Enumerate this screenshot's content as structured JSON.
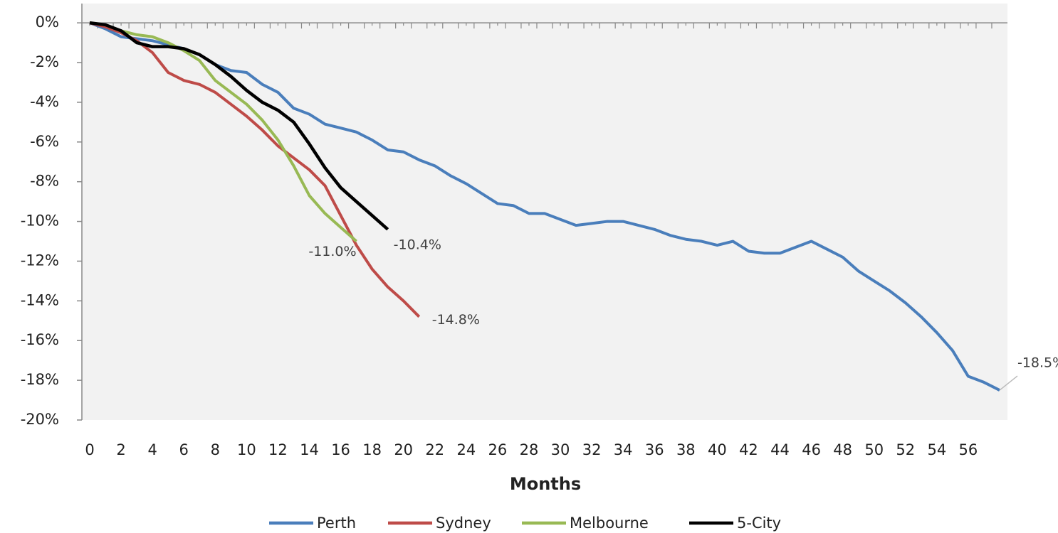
{
  "chart_data": {
    "type": "line",
    "x_label": "Months",
    "xlim": [
      -0.5,
      58.5
    ],
    "xticks": [
      0,
      2,
      4,
      6,
      8,
      10,
      12,
      14,
      16,
      18,
      20,
      22,
      24,
      26,
      28,
      30,
      32,
      34,
      36,
      38,
      40,
      42,
      44,
      46,
      48,
      50,
      52,
      54,
      56
    ],
    "ylim": [
      -20,
      0.9
    ],
    "yticks": [
      {
        "value": 0,
        "label": "0%"
      },
      {
        "value": -2,
        "label": "-2%"
      },
      {
        "value": -4,
        "label": "-4%"
      },
      {
        "value": -6,
        "label": "-6%"
      },
      {
        "value": -8,
        "label": "-8%"
      },
      {
        "value": -10,
        "label": "-10%"
      },
      {
        "value": -12,
        "label": "-12%"
      },
      {
        "value": -14,
        "label": "-14%"
      },
      {
        "value": -16,
        "label": "-16%"
      },
      {
        "value": -18,
        "label": "-18%"
      },
      {
        "value": -20,
        "label": "-20%"
      }
    ],
    "legend": "bottom",
    "series": [
      {
        "name": "Perth",
        "color": "#4a7ebb",
        "x": [
          0,
          1,
          2,
          3,
          4,
          5,
          6,
          7,
          8,
          9,
          10,
          11,
          12,
          13,
          14,
          15,
          16,
          17,
          18,
          19,
          20,
          21,
          22,
          23,
          24,
          25,
          26,
          27,
          28,
          29,
          30,
          31,
          32,
          33,
          34,
          35,
          36,
          37,
          38,
          39,
          40,
          41,
          42,
          43,
          44,
          45,
          46,
          47,
          48,
          49,
          50,
          51,
          52,
          53,
          54,
          55,
          56,
          57,
          58
        ],
        "values": [
          0,
          -0.3,
          -0.7,
          -0.8,
          -0.9,
          -1.1,
          -1.3,
          -1.6,
          -2.1,
          -2.4,
          -2.5,
          -3.1,
          -3.5,
          -4.3,
          -4.6,
          -5.1,
          -5.3,
          -5.5,
          -5.9,
          -6.4,
          -6.5,
          -6.9,
          -7.2,
          -7.7,
          -8.1,
          -8.6,
          -9.1,
          -9.2,
          -9.6,
          -9.6,
          -9.9,
          -10.2,
          -10.1,
          -10.0,
          -10.0,
          -10.2,
          -10.4,
          -10.7,
          -10.9,
          -11.0,
          -11.2,
          -11.0,
          -11.5,
          -11.6,
          -11.6,
          -11.3,
          -11.0,
          -11.4,
          -11.8,
          -12.5,
          -13.0,
          -13.5,
          -14.1,
          -14.8,
          -15.6,
          -16.5,
          -17.8,
          -18.1,
          -18.5
        ],
        "value_labels": [
          null,
          null,
          null,
          null,
          null,
          null,
          null,
          null,
          null,
          null,
          null,
          null,
          null,
          null,
          null,
          null,
          null,
          null,
          null,
          null,
          null,
          null,
          null,
          null,
          null,
          null,
          null,
          null,
          null,
          null,
          null,
          null,
          null,
          null,
          null,
          null,
          null,
          null,
          null,
          null,
          null,
          null,
          null,
          null,
          null,
          null,
          null,
          null,
          null,
          null,
          null,
          null,
          null,
          null,
          null,
          null,
          null,
          null,
          "-18.5%"
        ]
      },
      {
        "name": "Sydney",
        "color": "#be4b48",
        "x": [
          0,
          1,
          2,
          3,
          4,
          5,
          6,
          7,
          8,
          9,
          10,
          11,
          12,
          13,
          14,
          15,
          16,
          17,
          18,
          19,
          20,
          21
        ],
        "values": [
          0,
          -0.2,
          -0.5,
          -0.9,
          -1.5,
          -2.5,
          -2.9,
          -3.1,
          -3.5,
          -4.1,
          -4.7,
          -5.4,
          -6.2,
          -6.8,
          -7.4,
          -8.2,
          -9.7,
          -11.2,
          -12.4,
          -13.3,
          -14.0,
          -14.8
        ],
        "value_labels": [
          null,
          null,
          null,
          null,
          null,
          null,
          null,
          null,
          null,
          null,
          null,
          null,
          null,
          null,
          null,
          null,
          null,
          null,
          null,
          null,
          null,
          "-14.8%"
        ]
      },
      {
        "name": "Melbourne",
        "color": "#98b954",
        "x": [
          0,
          1,
          2,
          3,
          4,
          5,
          6,
          7,
          8,
          9,
          10,
          11,
          12,
          13,
          14,
          15,
          16,
          17
        ],
        "values": [
          0,
          -0.1,
          -0.4,
          -0.6,
          -0.7,
          -1.0,
          -1.4,
          -1.9,
          -2.9,
          -3.5,
          -4.1,
          -4.9,
          -5.9,
          -7.2,
          -8.7,
          -9.6,
          -10.3,
          -11.0
        ],
        "value_labels": [
          null,
          null,
          null,
          null,
          null,
          null,
          null,
          null,
          null,
          null,
          null,
          null,
          null,
          null,
          null,
          null,
          null,
          "-11.0%"
        ]
      },
      {
        "name": "5-City",
        "color": "#000000",
        "x": [
          0,
          1,
          2,
          3,
          4,
          5,
          6,
          7,
          8,
          9,
          10,
          11,
          12,
          13,
          14,
          15,
          16,
          17,
          18,
          19
        ],
        "values": [
          0,
          -0.1,
          -0.4,
          -1.0,
          -1.2,
          -1.2,
          -1.3,
          -1.6,
          -2.1,
          -2.7,
          -3.4,
          -4.0,
          -4.4,
          -5.0,
          -6.1,
          -7.3,
          -8.3,
          -9.0,
          -9.7,
          -10.4
        ],
        "value_labels": [
          null,
          null,
          null,
          null,
          null,
          null,
          null,
          null,
          null,
          null,
          null,
          null,
          null,
          null,
          null,
          null,
          null,
          null,
          null,
          "-10.4%"
        ]
      }
    ]
  }
}
